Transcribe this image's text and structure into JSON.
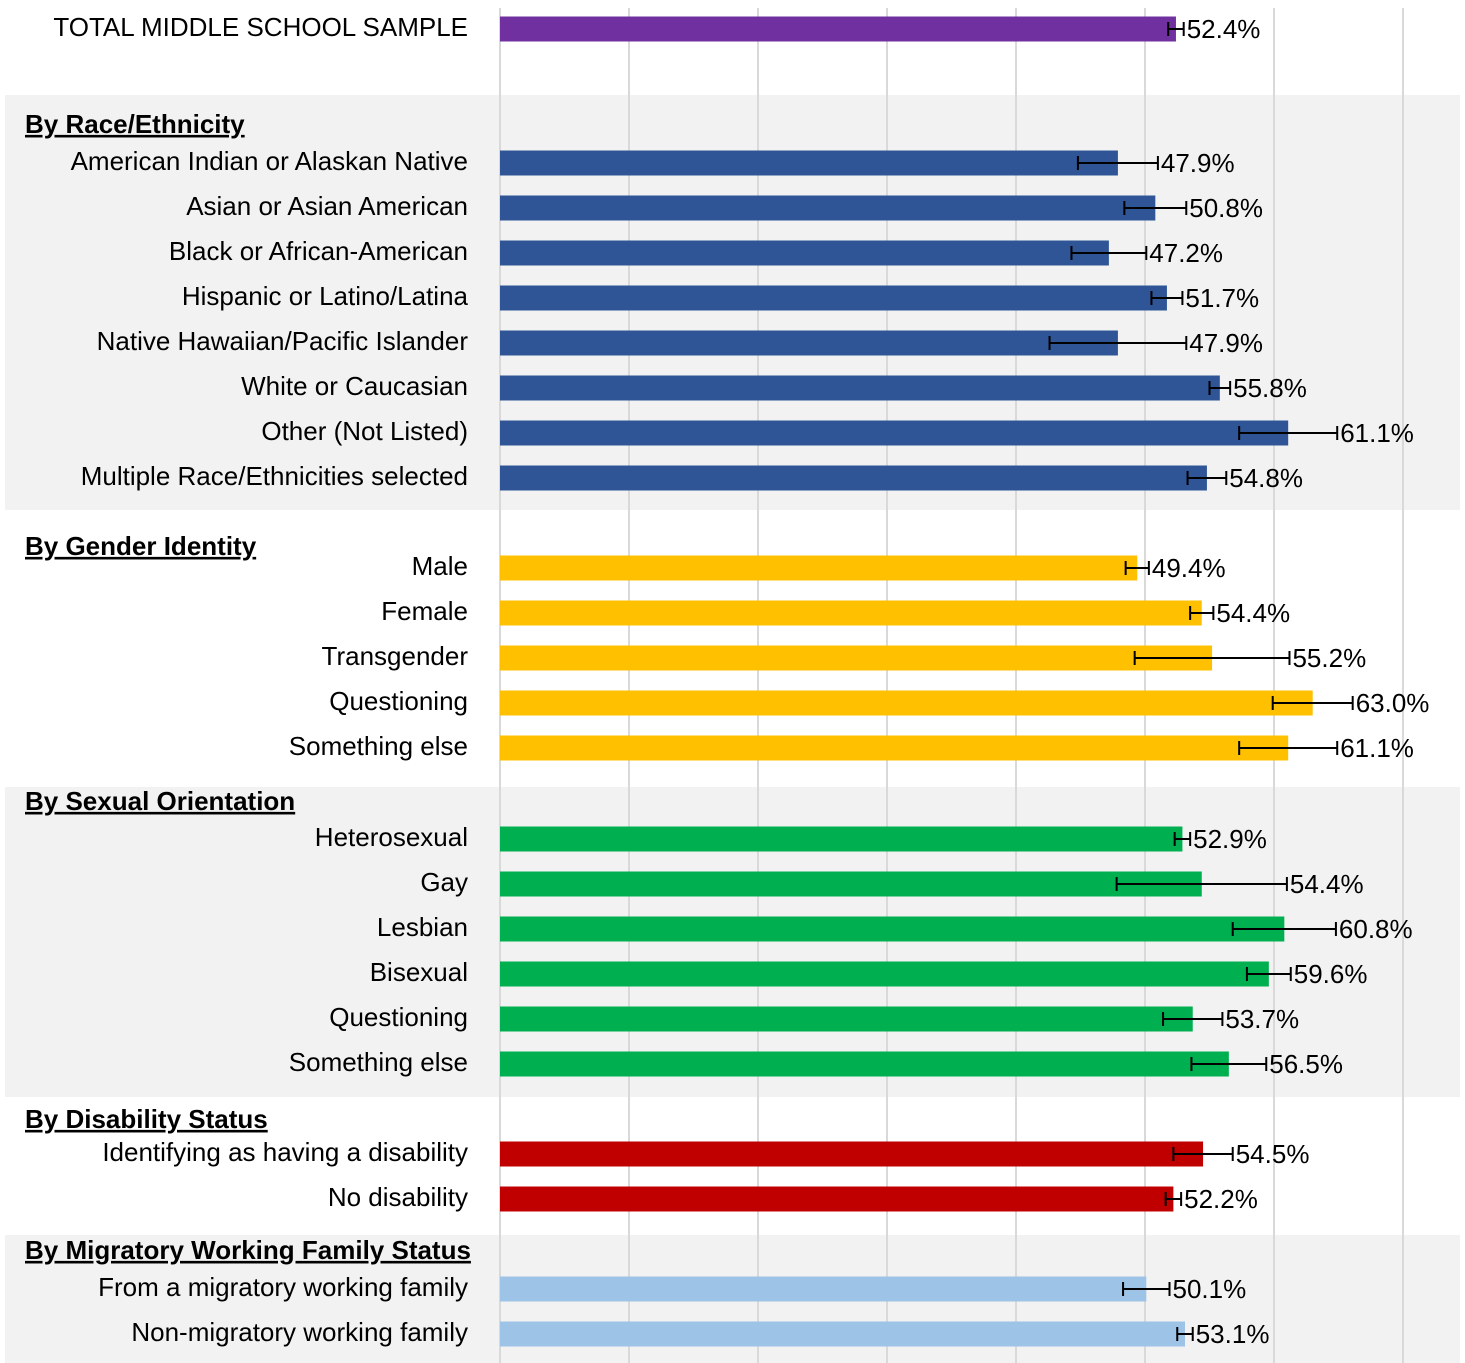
{
  "chart_data": {
    "type": "bar",
    "orientation": "horizontal",
    "xlim": [
      0,
      70
    ],
    "xticks": [
      0,
      10,
      20,
      30,
      40,
      50,
      60,
      70
    ],
    "grid": true,
    "xtick_labels": false,
    "groups": [
      {
        "color": "#7030a0",
        "categories": [
          "TOTAL MIDDLE SCHOOL SAMPLE"
        ],
        "values": [
          52.4
        ],
        "errors": [
          0.6
        ],
        "value_labels": [
          "52.4%"
        ]
      },
      {
        "title": "By Race/Ethnicity",
        "color": "#2f5597",
        "categories": [
          "American Indian or Alaskan Native",
          "Asian or Asian American",
          "Black or African-American",
          "Hispanic or Latino/Latina",
          "Native Hawaiian/Pacific Islander",
          "White or Caucasian",
          "Other (Not Listed)",
          "Multiple Race/Ethnicities selected"
        ],
        "values": [
          47.9,
          50.8,
          47.2,
          51.7,
          47.9,
          55.8,
          61.1,
          54.8
        ],
        "errors": [
          3.1,
          2.4,
          2.9,
          1.2,
          5.3,
          0.8,
          3.8,
          1.5
        ],
        "value_labels": [
          "47.9%",
          "50.8%",
          "47.2%",
          "51.7%",
          "47.9%",
          "55.8%",
          "61.1%",
          "54.8%"
        ]
      },
      {
        "title": "By Gender Identity",
        "color": "#ffc000",
        "categories": [
          "Male",
          "Female",
          "Transgender",
          "Questioning",
          "Something else"
        ],
        "values": [
          49.4,
          54.4,
          55.2,
          63.0,
          61.1
        ],
        "errors": [
          0.9,
          0.9,
          6.0,
          3.1,
          3.8
        ],
        "value_labels": [
          "49.4%",
          "54.4%",
          "55.2%",
          "63.0%",
          "61.1%"
        ]
      },
      {
        "title": "By Sexual Orientation",
        "color": "#00b050",
        "categories": [
          "Heterosexual",
          "Gay",
          "Lesbian",
          "Bisexual",
          "Questioning",
          "Something else"
        ],
        "values": [
          52.9,
          54.4,
          60.8,
          59.6,
          53.7,
          56.5
        ],
        "errors": [
          0.6,
          6.6,
          4.0,
          1.7,
          2.3,
          2.9
        ],
        "value_labels": [
          "52.9%",
          "54.4%",
          "60.8%",
          "59.6%",
          "53.7%",
          "56.5%"
        ]
      },
      {
        "title": "By Disability Status",
        "color": "#c00000",
        "categories": [
          "Identifying as having a disability",
          "No disability"
        ],
        "values": [
          54.5,
          52.2
        ],
        "errors": [
          2.3,
          0.6
        ],
        "value_labels": [
          "54.5%",
          "52.2%"
        ]
      },
      {
        "title": "By Migratory Working Family Status",
        "color": "#9dc3e6",
        "categories": [
          "From a migratory working family",
          "Non-migratory working family"
        ],
        "values": [
          50.1,
          53.1
        ],
        "errors": [
          1.8,
          0.6
        ],
        "value_labels": [
          "50.1%",
          "53.1%"
        ]
      }
    ]
  }
}
